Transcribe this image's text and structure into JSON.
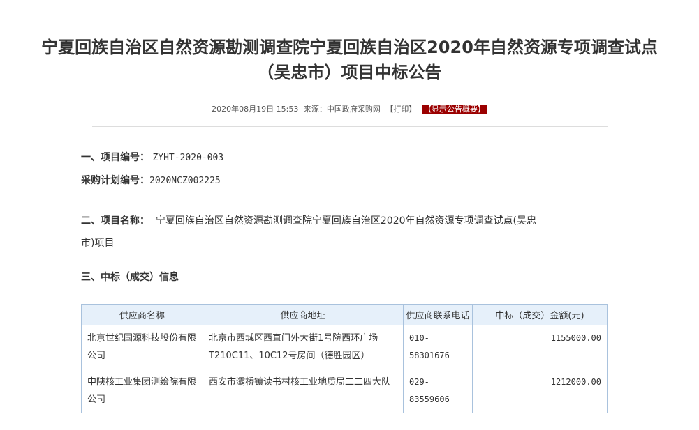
{
  "title": "宁夏回族自治区自然资源勘测调查院宁夏回族自治区2020年自然资源专项调查试点（吴忠市）项目中标公告",
  "title_line1": "宁夏回族自治区自然资源勘测调查院宁夏回族自治区2020年自然资源专项调查试点",
  "title_line2": "（吴忠市）项目中标公告",
  "meta": {
    "datetime": "2020年08月19日 15:53",
    "source": "来源：中国政府采购网",
    "print": "【打印】",
    "summary": "【显示公告概要】"
  },
  "colors": {
    "summary_bg": "#9b0000",
    "table_header_bg": "#e6f0fa",
    "table_border": "#a9c2dd"
  },
  "section1": {
    "label": "一、项目编号：",
    "value": "ZYHT-2020-003"
  },
  "plan": {
    "label": "采购计划编号：",
    "value": "2020NCZ002225"
  },
  "section2": {
    "label": "二、项目名称：",
    "value_line1": "宁夏回族自治区自然资源勘测调查院宁夏回族自治区2020年自然资源专项调查试点(吴忠",
    "value_line2": "市)项目"
  },
  "section3": {
    "label": "三、中标（成交）信息"
  },
  "table": {
    "headers": [
      "供应商名称",
      "供应商地址",
      "供应商联系电话",
      "中标（成交）金额(元)"
    ],
    "rows": [
      [
        "北京世纪国源科技股份有限公司",
        "北京市西城区西直门外大街1号院西环广场T210C11、10C12号房间（德胜园区）",
        "010-58301676",
        "1155000.00"
      ],
      [
        "中陕核工业集团测绘院有限公司",
        "西安市灞桥镇读书村核工业地质局二二四大队",
        "029-83559606",
        "1212000.00"
      ]
    ]
  }
}
